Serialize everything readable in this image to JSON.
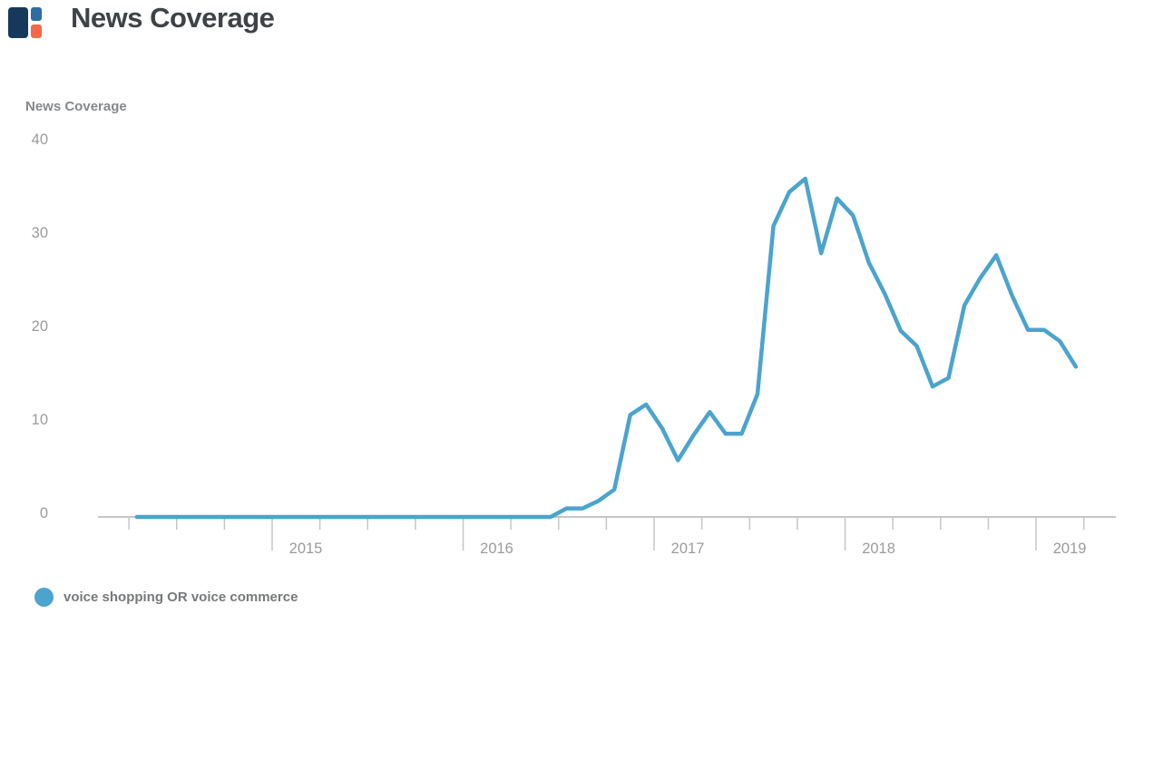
{
  "header": {
    "title": "News Coverage"
  },
  "logo": {
    "name": "CB Insights logo",
    "navy": "#16395b",
    "blue": "#2e6da4",
    "orange": "#f26849"
  },
  "chart": {
    "axis_title": "News Coverage",
    "legend": {
      "label": "voice shopping OR voice commerce"
    }
  },
  "colors": {
    "line": "#4ba4cd",
    "axis": "#c6c6c6",
    "tick_text": "#9b9b9b"
  },
  "chart_data": {
    "type": "line",
    "title": "News Coverage",
    "ylabel": "News Coverage",
    "x_unit": "month",
    "x_start": "2014-04",
    "x_end": "2019-03",
    "x_tick_labels": [
      "2015",
      "2016",
      "2017",
      "2018",
      "2019"
    ],
    "y_ticks": [
      0,
      10,
      20,
      30,
      40
    ],
    "ylim": [
      0,
      40
    ],
    "grid": false,
    "legend_position": "bottom-left",
    "series": [
      {
        "name": "voice shopping OR voice commerce",
        "color": "#4ba4cd",
        "values": [
          0,
          0,
          0,
          0,
          0,
          0,
          0,
          0,
          0,
          0,
          0,
          0,
          0,
          0,
          0,
          0,
          0,
          0,
          0,
          0,
          0,
          0,
          0,
          0,
          0,
          0,
          0,
          0.9,
          0.9,
          1.7,
          2.9,
          10.8,
          11.9,
          9.4,
          6,
          8.7,
          11.1,
          8.8,
          8.8,
          13,
          30.8,
          34.4,
          35.8,
          27.9,
          33.7,
          31.9,
          26.9,
          23.6,
          19.7,
          18.1,
          13.8,
          14.7,
          22.4,
          25.3,
          27.7,
          23.4,
          19.8,
          19.8,
          18.6,
          15.9
        ]
      }
    ]
  }
}
